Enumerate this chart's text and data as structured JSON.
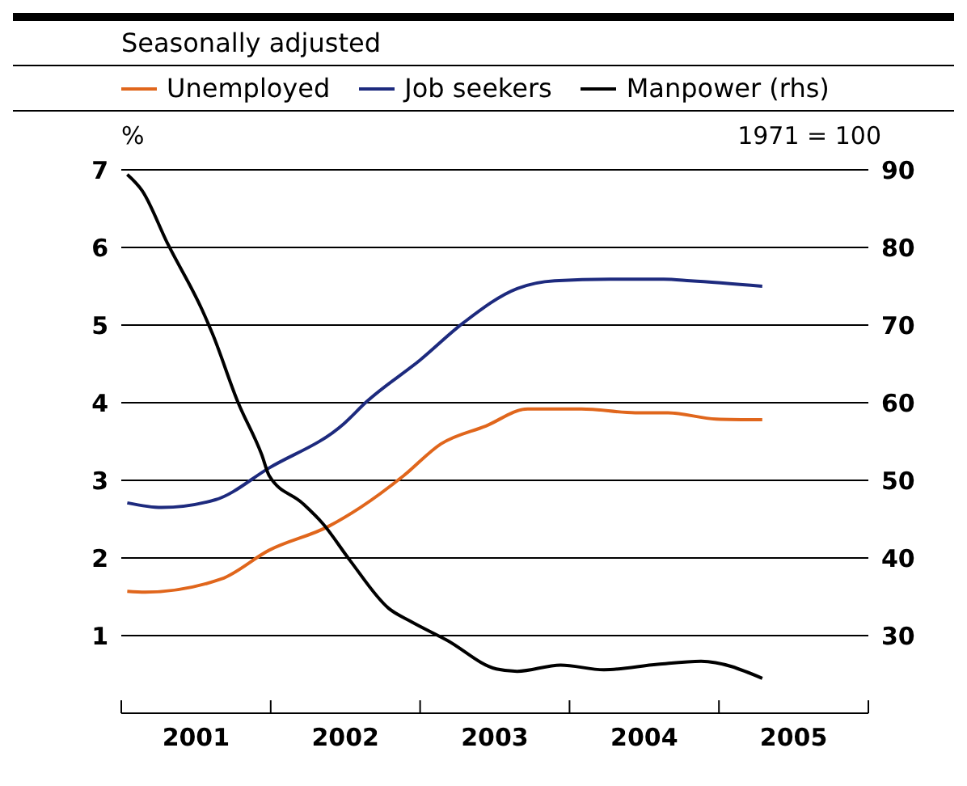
{
  "chart_data": {
    "type": "line",
    "subtitle": "Seasonally adjusted",
    "ylabel": "%",
    "y2label": "1971 = 100",
    "xlim": [
      2001,
      2006
    ],
    "xticks": [
      {
        "value": 2001,
        "label": null
      },
      {
        "value": 2001.5,
        "label": "2001"
      },
      {
        "value": 2002,
        "label": null
      },
      {
        "value": 2002.5,
        "label": "2002"
      },
      {
        "value": 2003,
        "label": null
      },
      {
        "value": 2003.5,
        "label": "2003"
      },
      {
        "value": 2004,
        "label": null
      },
      {
        "value": 2004.5,
        "label": "2004"
      },
      {
        "value": 2005,
        "label": null
      },
      {
        "value": 2005.5,
        "label": "2005"
      },
      {
        "value": 2006,
        "label": null
      }
    ],
    "ylim": [
      0,
      7
    ],
    "yticks": [
      1,
      2,
      3,
      4,
      5,
      6,
      7
    ],
    "y2lim": [
      20,
      90
    ],
    "y2ticks": [
      30,
      40,
      50,
      60,
      70,
      80,
      90
    ],
    "grid": "y",
    "legend": "top left",
    "series": [
      {
        "name": "Unemployed",
        "color": "#e0661c",
        "x": [
          2001.04,
          2001.16,
          2001.67,
          2001.99,
          2002.39,
          2002.6,
          2002.89,
          2003.14,
          2003.44,
          2003.72,
          2004.08,
          2004.44,
          2004.66,
          2004.98,
          2005.29
        ],
        "values": [
          1.57,
          1.56,
          1.73,
          2.1,
          2.41,
          2.65,
          3.06,
          3.47,
          3.7,
          3.92,
          3.92,
          3.87,
          3.87,
          3.79,
          3.78
        ]
      },
      {
        "name": "Job seekers",
        "color": "#1d2a7e",
        "x": [
          2001.04,
          2001.27,
          2001.63,
          2001.99,
          2002.49,
          2002.64,
          2003.0,
          2003.29,
          2003.65,
          2003.9,
          2004.27,
          2004.63,
          2004.81,
          2005.29
        ],
        "values": [
          2.71,
          2.65,
          2.75,
          3.16,
          3.73,
          4.01,
          4.55,
          5.03,
          5.47,
          5.57,
          5.59,
          5.59,
          5.57,
          5.5
        ]
      },
      {
        "name": "Manpower (rhs)",
        "color": "#000000",
        "axis": "y2",
        "x": [
          2001.04,
          2001.14,
          2001.31,
          2001.54,
          2001.61,
          2001.78,
          2001.94,
          2001.99,
          2002.21,
          2002.35,
          2002.53,
          2002.79,
          2002.94,
          2003.18,
          2003.51,
          2003.65,
          2003.94,
          2004.23,
          2004.59,
          2004.88,
          2005.29
        ],
        "values": [
          89.4,
          87.3,
          80.5,
          72.0,
          68.9,
          60.1,
          53.3,
          50.6,
          47.1,
          44.4,
          39.7,
          33.5,
          31.8,
          29.4,
          25.7,
          25.4,
          26.2,
          25.6,
          26.3,
          26.7,
          24.5
        ]
      }
    ]
  }
}
